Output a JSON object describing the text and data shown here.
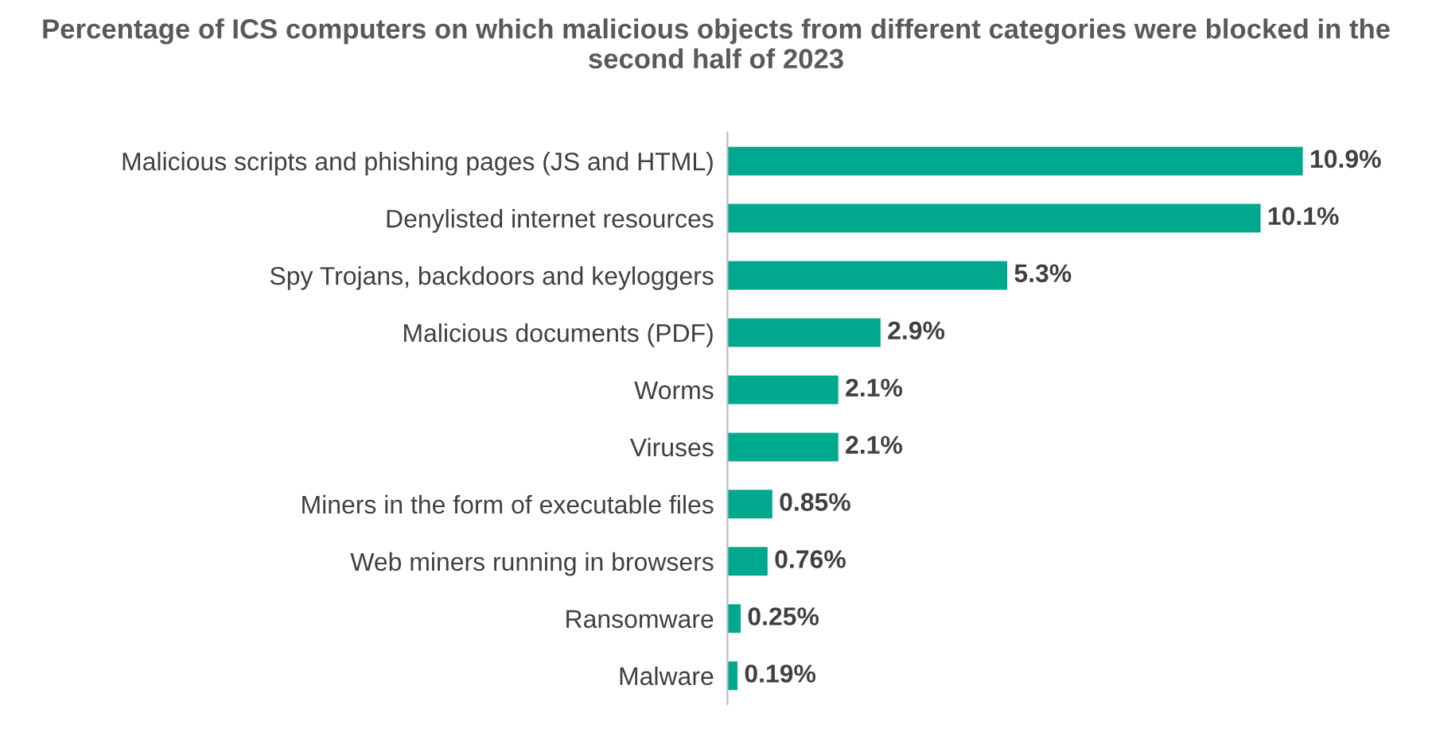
{
  "chart_data": {
    "type": "bar",
    "orientation": "horizontal",
    "title": "Percentage of ICS computers on which malicious objects from different categories were blocked in the second half of 2023",
    "categories": [
      "Malicious scripts and phishing pages (JS and HTML)",
      "Denylisted internet resources",
      "Spy Trojans, backdoors and keyloggers",
      "Malicious documents (PDF)",
      "Worms",
      "Viruses",
      "Miners in the form of executable files",
      "Web miners running in browsers",
      "Ransomware",
      "Malware"
    ],
    "values": [
      10.9,
      10.1,
      5.3,
      2.9,
      2.1,
      2.1,
      0.85,
      0.76,
      0.25,
      0.19
    ],
    "value_labels": [
      "10.9%",
      "10.1%",
      "5.3%",
      "2.9%",
      "2.1%",
      "2.1%",
      "0.85%",
      "0.76%",
      "0.25%",
      "0.19%"
    ],
    "color": "#00a88e",
    "grid": false,
    "legend": false
  }
}
